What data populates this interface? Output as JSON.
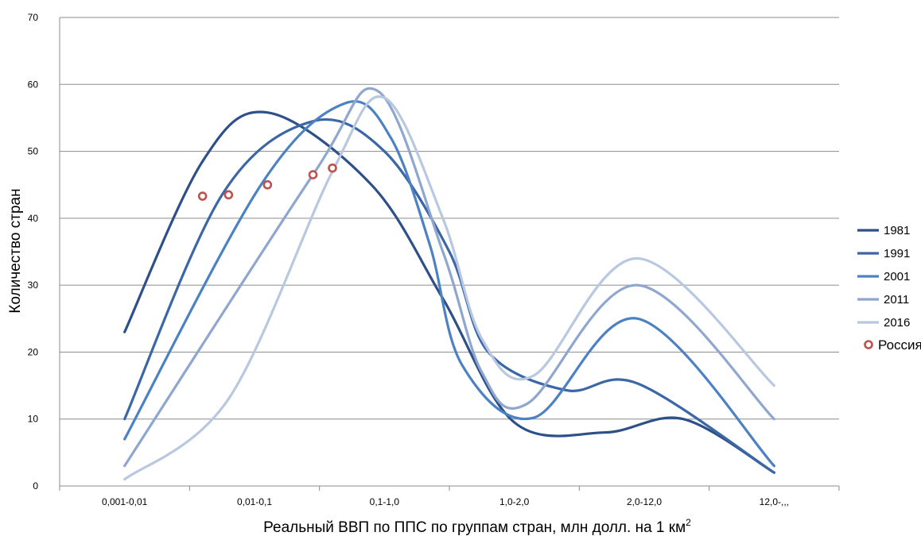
{
  "chart_data": {
    "type": "line",
    "xlabel": "Реальный ВВП по ППС по группам стран, млн долл. на 1 км",
    "xlabel_sup": "2",
    "ylabel": "Количество стран",
    "categories": [
      "0,001-0,01",
      "0,01-0,1",
      "0,1-1,0",
      "1,0-2,0",
      "2,0-12,0",
      "12,0-,,,"
    ],
    "yticks": [
      "0",
      "10",
      "20",
      "30",
      "40",
      "50",
      "60",
      "70"
    ],
    "ylim": [
      0,
      70
    ],
    "grid": true,
    "legend_position": "right",
    "smooth": true,
    "series": [
      {
        "name": "1981",
        "color": "#2e5088",
        "x": [
          0,
          0.6,
          1.1,
          1.9,
          2.45,
          3.0,
          3.7,
          4.3,
          5.0
        ],
        "y": [
          23,
          48.5,
          55.8,
          45,
          28,
          9.5,
          8,
          10,
          2
        ]
      },
      {
        "name": "1991",
        "color": "#3b67a6",
        "x": [
          0,
          0.75,
          1.45,
          2.0,
          2.5,
          2.8,
          3.4,
          3.95,
          5.0
        ],
        "y": [
          10,
          43.5,
          54.5,
          50,
          35,
          20,
          14.3,
          15.3,
          2
        ]
      },
      {
        "name": "2001",
        "color": "#4c82c3",
        "x": [
          0,
          1.05,
          1.7,
          2.05,
          2.35,
          2.6,
          3.15,
          3.95,
          5.0
        ],
        "y": [
          7,
          45,
          57.2,
          52,
          36,
          18,
          10.2,
          25,
          3
        ]
      },
      {
        "name": "2011",
        "color": "#8fa7cf",
        "x": [
          0,
          1.45,
          1.95,
          2.45,
          2.75,
          3.1,
          3.95,
          5.0
        ],
        "y": [
          3,
          46.5,
          59,
          35,
          17,
          12.3,
          30,
          10
        ]
      },
      {
        "name": "2016",
        "color": "#b9c8e1",
        "x": [
          0,
          0.8,
          1.6,
          2.0,
          2.45,
          2.75,
          3.15,
          3.95,
          5.0
        ],
        "y": [
          1,
          13,
          47,
          58,
          40,
          22,
          16.5,
          34,
          15
        ]
      }
    ],
    "markers": {
      "name": "Россия",
      "color": "#c0504d",
      "points": [
        {
          "x": 0.6,
          "y": 43.3
        },
        {
          "x": 0.8,
          "y": 43.5
        },
        {
          "x": 1.1,
          "y": 45
        },
        {
          "x": 1.45,
          "y": 46.5
        },
        {
          "x": 1.6,
          "y": 47.5
        }
      ]
    }
  }
}
